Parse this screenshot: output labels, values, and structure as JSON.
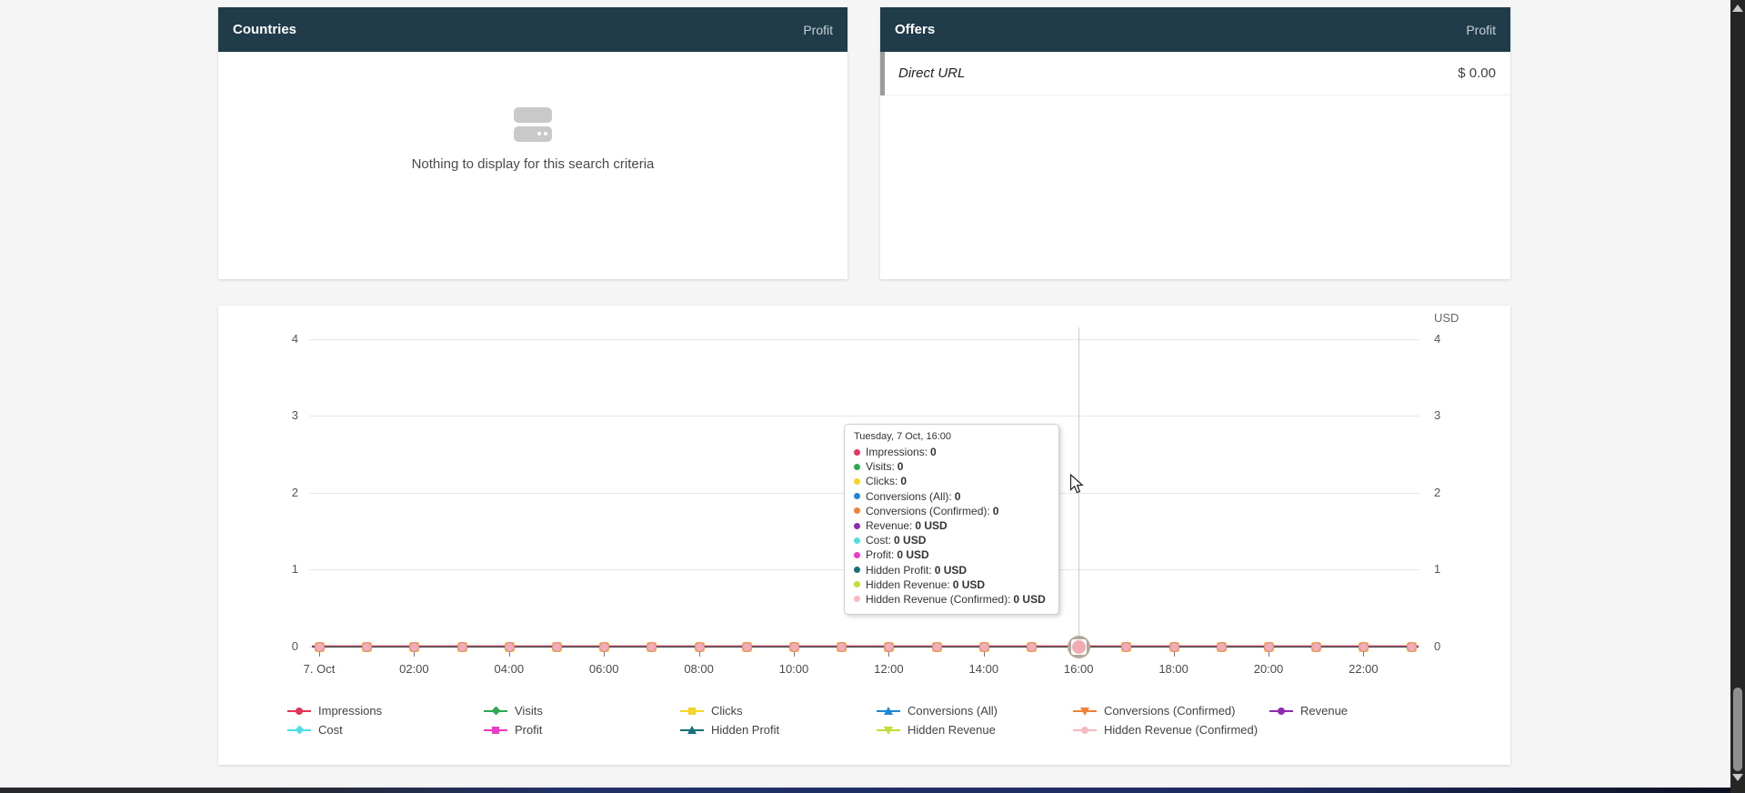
{
  "panels": {
    "countries": {
      "title": "Countries",
      "metric": "Profit",
      "empty_text": "Nothing to display for this search criteria"
    },
    "offers": {
      "title": "Offers",
      "metric": "Profit",
      "rows": [
        {
          "label": "Direct URL",
          "value": "$ 0.00"
        }
      ]
    }
  },
  "chart": {
    "unit": "USD",
    "y_ticks": [
      "4",
      "3",
      "2",
      "1",
      "0"
    ],
    "x_tick_labels": [
      "7. Oct",
      "02:00",
      "04:00",
      "06:00",
      "08:00",
      "10:00",
      "12:00",
      "14:00",
      "16:00",
      "18:00",
      "20:00",
      "22:00"
    ],
    "highlight_index": 16,
    "tooltip": {
      "title": "Tuesday, 7 Oct, 16:00",
      "rows": [
        {
          "label": "Impressions",
          "value": "0",
          "color": "#e63357"
        },
        {
          "label": "Visits",
          "value": "0",
          "color": "#2fa84f"
        },
        {
          "label": "Clicks",
          "value": "0",
          "color": "#f5d422"
        },
        {
          "label": "Conversions (All)",
          "value": "0",
          "color": "#2186d5"
        },
        {
          "label": "Conversions (Confirmed)",
          "value": "0",
          "color": "#f08136"
        },
        {
          "label": "Revenue",
          "value": "0 USD",
          "color": "#9229b3"
        },
        {
          "label": "Cost",
          "value": "0 USD",
          "color": "#4ddfe6"
        },
        {
          "label": "Profit",
          "value": "0 USD",
          "color": "#ef3ac5"
        },
        {
          "label": "Hidden Profit",
          "value": "0 USD",
          "color": "#15707a"
        },
        {
          "label": "Hidden Revenue",
          "value": "0 USD",
          "color": "#bfdf33"
        },
        {
          "label": "Hidden Revenue (Confirmed)",
          "value": "0 USD",
          "color": "#f6b9bf"
        }
      ]
    },
    "legend": [
      {
        "label": "Impressions",
        "color": "#e63357",
        "shape": "circle"
      },
      {
        "label": "Visits",
        "color": "#2fa84f",
        "shape": "diamond"
      },
      {
        "label": "Clicks",
        "color": "#f5d422",
        "shape": "square"
      },
      {
        "label": "Conversions (All)",
        "color": "#2186d5",
        "shape": "triangle-up"
      },
      {
        "label": "Conversions (Confirmed)",
        "color": "#f08136",
        "shape": "triangle-down"
      },
      {
        "label": "Revenue",
        "color": "#9229b3",
        "shape": "circle"
      },
      {
        "label": "Cost",
        "color": "#4ddfe6",
        "shape": "diamond"
      },
      {
        "label": "Profit",
        "color": "#ef3ac5",
        "shape": "square"
      },
      {
        "label": "Hidden Profit",
        "color": "#15707a",
        "shape": "triangle-up"
      },
      {
        "label": "Hidden Revenue",
        "color": "#bfdf33",
        "shape": "triangle-down"
      },
      {
        "label": "Hidden Revenue (Confirmed)",
        "color": "#f6b9bf",
        "shape": "circle"
      }
    ],
    "chart_data": {
      "type": "line",
      "date": "Tuesday, 7 Oct",
      "x": [
        "00:00",
        "01:00",
        "02:00",
        "03:00",
        "04:00",
        "05:00",
        "06:00",
        "07:00",
        "08:00",
        "09:00",
        "10:00",
        "11:00",
        "12:00",
        "13:00",
        "14:00",
        "15:00",
        "16:00",
        "17:00",
        "18:00",
        "19:00",
        "20:00",
        "21:00",
        "22:00",
        "23:00"
      ],
      "ylim": [
        0,
        4
      ],
      "y_axis_right_unit": "USD",
      "grid": true,
      "legend_position": "bottom",
      "hovered_x": "16:00",
      "series": [
        {
          "name": "Impressions",
          "values": [
            0,
            0,
            0,
            0,
            0,
            0,
            0,
            0,
            0,
            0,
            0,
            0,
            0,
            0,
            0,
            0,
            0,
            0,
            0,
            0,
            0,
            0,
            0,
            0
          ]
        },
        {
          "name": "Visits",
          "values": [
            0,
            0,
            0,
            0,
            0,
            0,
            0,
            0,
            0,
            0,
            0,
            0,
            0,
            0,
            0,
            0,
            0,
            0,
            0,
            0,
            0,
            0,
            0,
            0
          ]
        },
        {
          "name": "Clicks",
          "values": [
            0,
            0,
            0,
            0,
            0,
            0,
            0,
            0,
            0,
            0,
            0,
            0,
            0,
            0,
            0,
            0,
            0,
            0,
            0,
            0,
            0,
            0,
            0,
            0
          ]
        },
        {
          "name": "Conversions (All)",
          "values": [
            0,
            0,
            0,
            0,
            0,
            0,
            0,
            0,
            0,
            0,
            0,
            0,
            0,
            0,
            0,
            0,
            0,
            0,
            0,
            0,
            0,
            0,
            0,
            0
          ]
        },
        {
          "name": "Conversions (Confirmed)",
          "values": [
            0,
            0,
            0,
            0,
            0,
            0,
            0,
            0,
            0,
            0,
            0,
            0,
            0,
            0,
            0,
            0,
            0,
            0,
            0,
            0,
            0,
            0,
            0,
            0
          ]
        },
        {
          "name": "Revenue",
          "values": [
            0,
            0,
            0,
            0,
            0,
            0,
            0,
            0,
            0,
            0,
            0,
            0,
            0,
            0,
            0,
            0,
            0,
            0,
            0,
            0,
            0,
            0,
            0,
            0
          ]
        },
        {
          "name": "Cost",
          "values": [
            0,
            0,
            0,
            0,
            0,
            0,
            0,
            0,
            0,
            0,
            0,
            0,
            0,
            0,
            0,
            0,
            0,
            0,
            0,
            0,
            0,
            0,
            0,
            0
          ]
        },
        {
          "name": "Profit",
          "values": [
            0,
            0,
            0,
            0,
            0,
            0,
            0,
            0,
            0,
            0,
            0,
            0,
            0,
            0,
            0,
            0,
            0,
            0,
            0,
            0,
            0,
            0,
            0,
            0
          ]
        },
        {
          "name": "Hidden Profit",
          "values": [
            0,
            0,
            0,
            0,
            0,
            0,
            0,
            0,
            0,
            0,
            0,
            0,
            0,
            0,
            0,
            0,
            0,
            0,
            0,
            0,
            0,
            0,
            0,
            0
          ]
        },
        {
          "name": "Hidden Revenue",
          "values": [
            0,
            0,
            0,
            0,
            0,
            0,
            0,
            0,
            0,
            0,
            0,
            0,
            0,
            0,
            0,
            0,
            0,
            0,
            0,
            0,
            0,
            0,
            0,
            0
          ]
        },
        {
          "name": "Hidden Revenue (Confirmed)",
          "values": [
            0,
            0,
            0,
            0,
            0,
            0,
            0,
            0,
            0,
            0,
            0,
            0,
            0,
            0,
            0,
            0,
            0,
            0,
            0,
            0,
            0,
            0,
            0,
            0
          ]
        }
      ]
    }
  }
}
